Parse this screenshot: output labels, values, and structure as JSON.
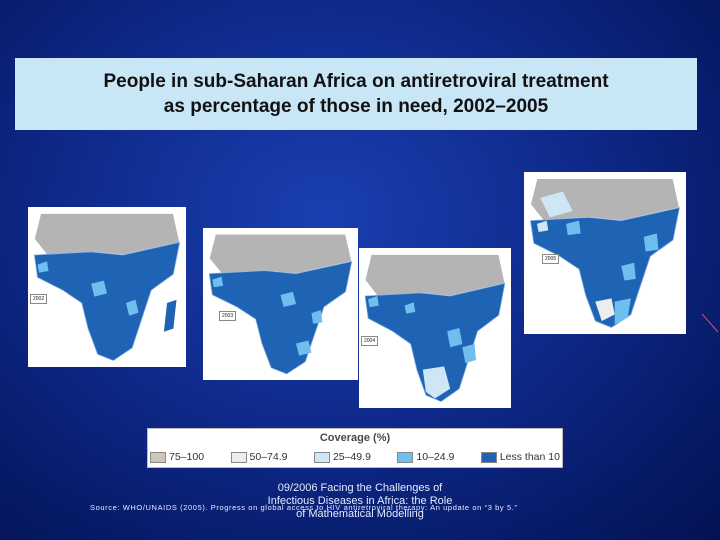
{
  "title": {
    "line1": "People in sub-Saharan Africa on antiretroviral treatment",
    "line2": "as percentage of those in need, 2002–2005"
  },
  "maps": [
    {
      "year": "2002"
    },
    {
      "year": "2003"
    },
    {
      "year": "2004"
    },
    {
      "year": "2005"
    }
  ],
  "legend": {
    "title": "Coverage (%)",
    "items": [
      {
        "label": "75–100",
        "color": "#cfc6b8"
      },
      {
        "label": "50–74.9",
        "color": "#ededed"
      },
      {
        "label": "25–49.9",
        "color": "#cfe6f7"
      },
      {
        "label": "10–24.9",
        "color": "#6fbef0"
      },
      {
        "label": "Less than 10",
        "color": "#1f64b4"
      }
    ]
  },
  "colors": {
    "north_africa": "#b4b4b4",
    "ocean": "#ffffff",
    "slide_background": "#0f2a8c",
    "title_box": "#c9e6f7"
  },
  "source": "Source: WHO/UNAIDS (2005). Progress on global access to HIV antiretroviral therapy: An update on “3 by 5.”",
  "footer": {
    "line1": "09/2006 Facing the Challenges of",
    "line2": "Infectious Diseases in Africa: the Role",
    "line3": "of Mathematical Modelling"
  }
}
